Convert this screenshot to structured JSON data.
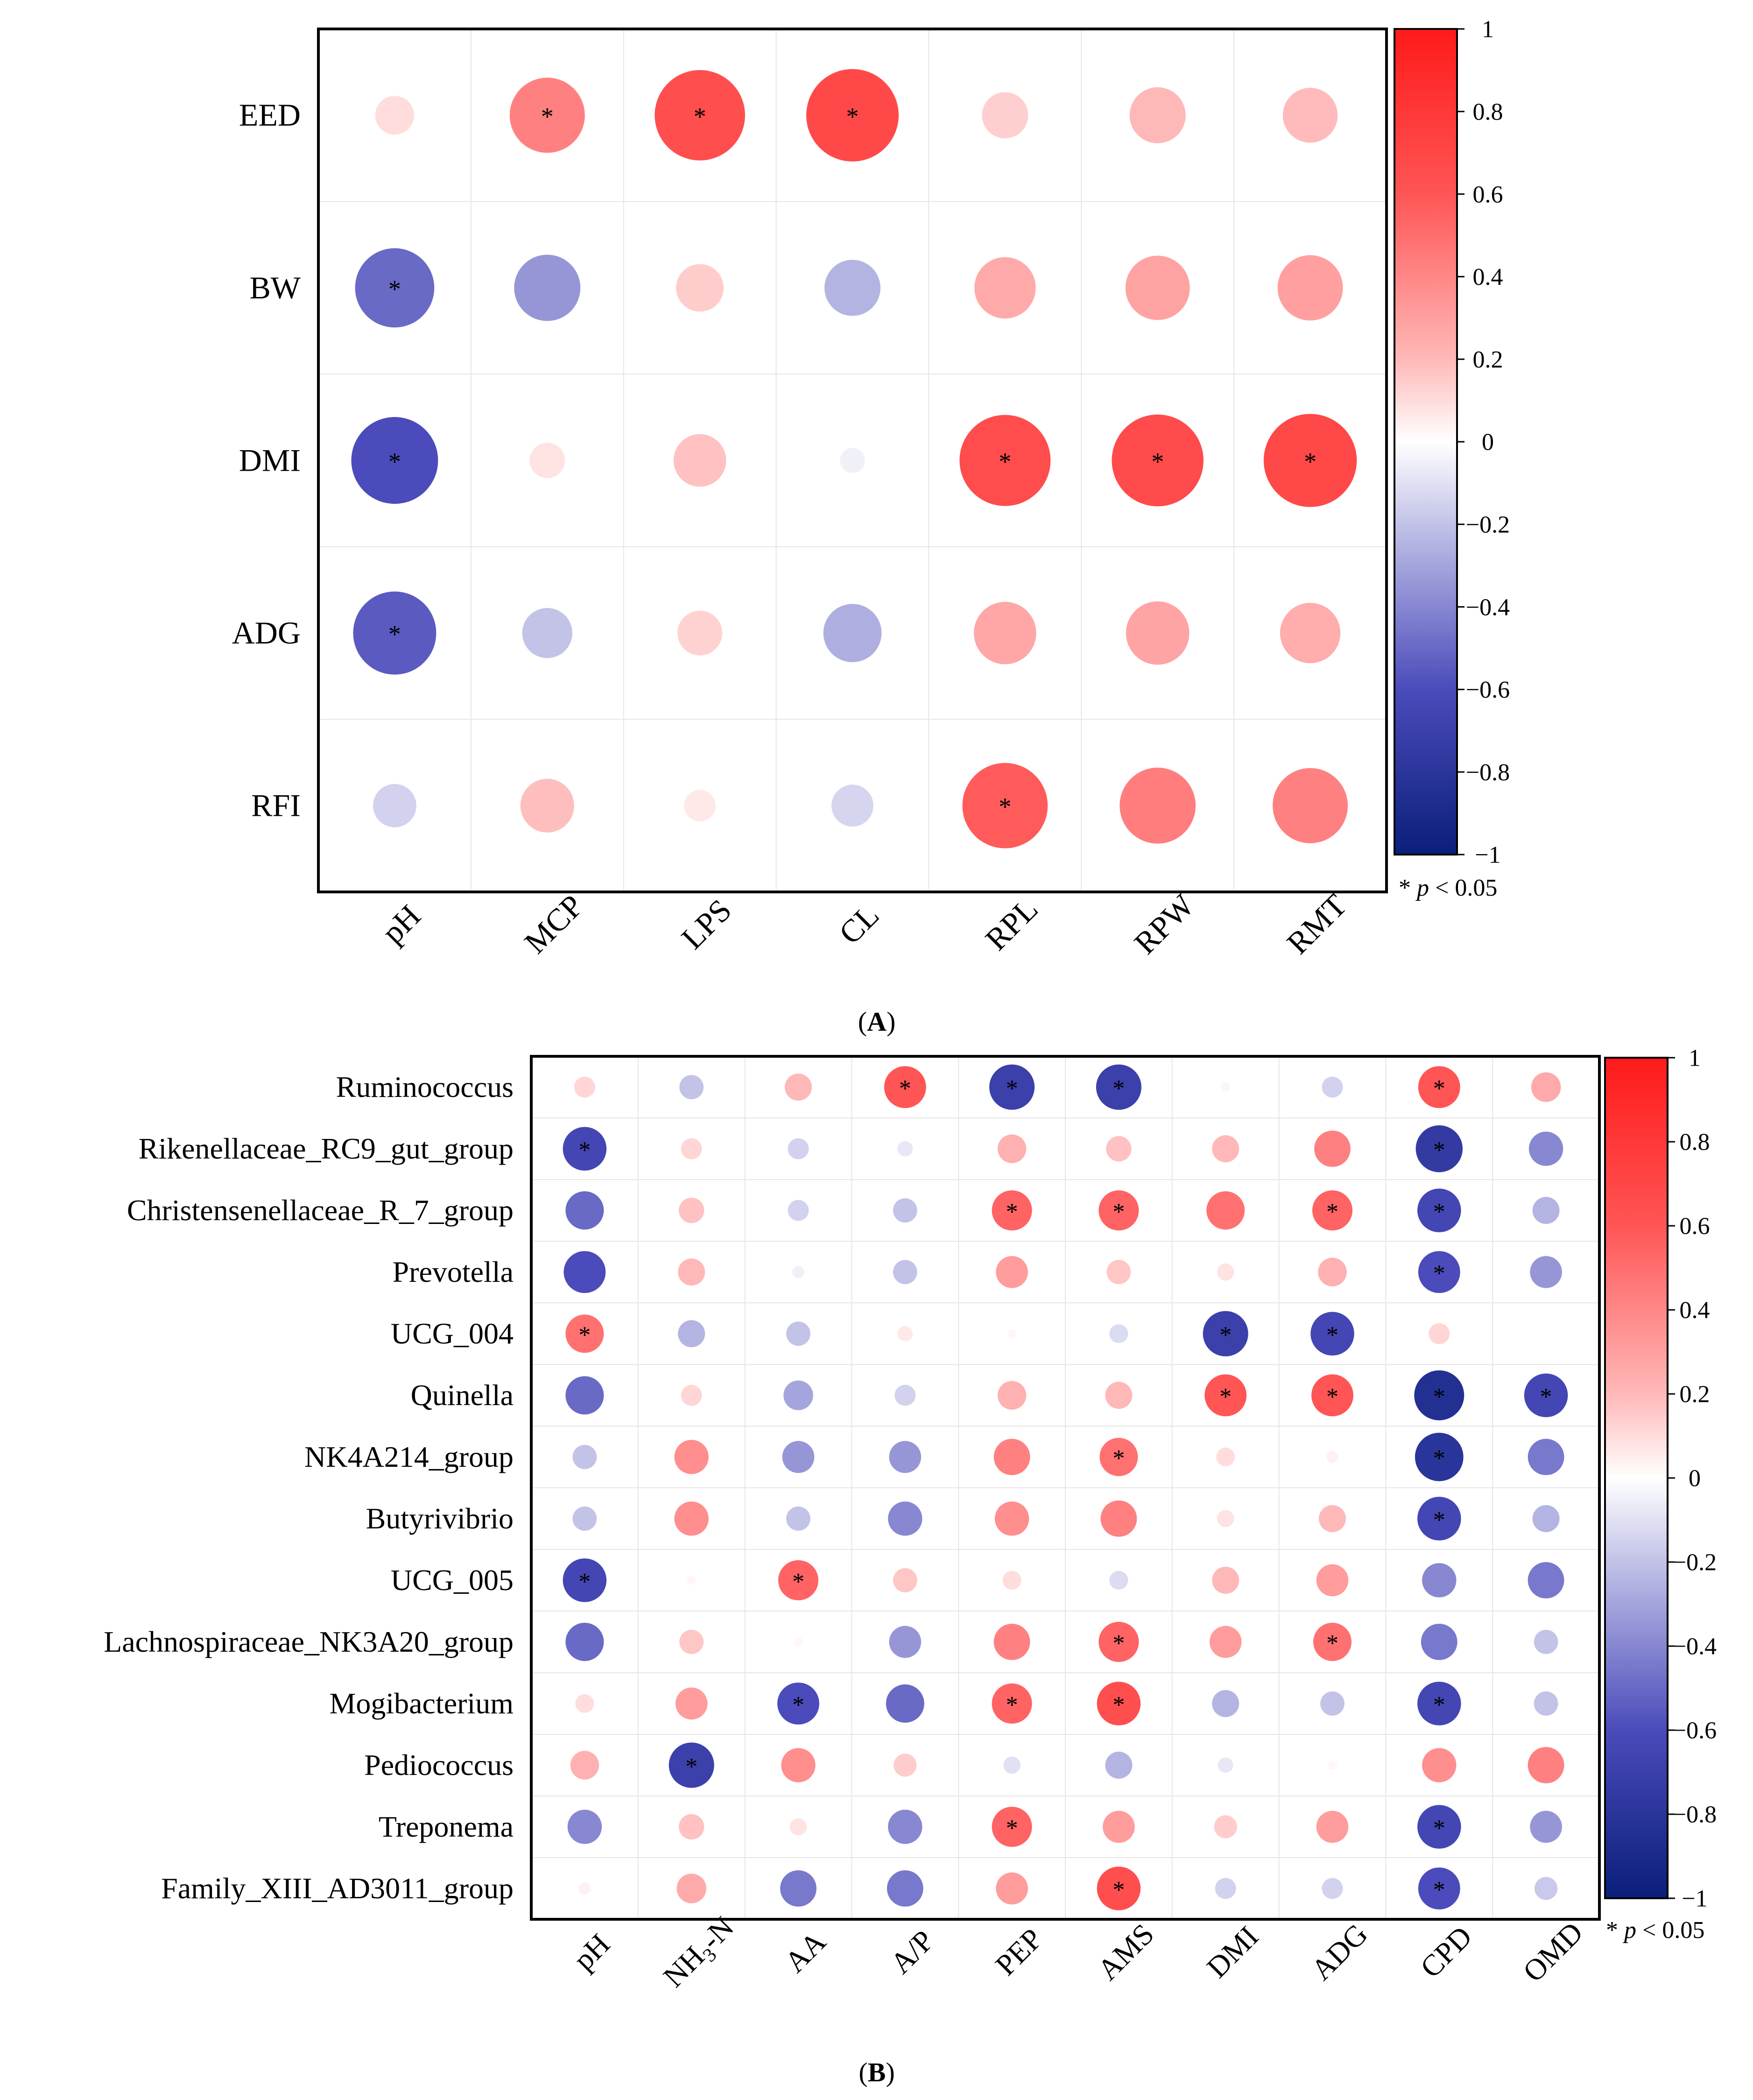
{
  "figure": {
    "panel_labels": [
      "A",
      "B"
    ],
    "significance_note": {
      "symbol": "*",
      "variable": "p",
      "relation": "< 0.05"
    },
    "colorbar_ticks": [
      "1",
      "0.8",
      "0.6",
      "0.4",
      "0.2",
      "0",
      "−0.2",
      "−0.4",
      "−0.6",
      "−0.8",
      "−1"
    ],
    "colors": {
      "positive": "#ff1a1a",
      "neutral": "#ffffff",
      "negative": "#0a1f7a",
      "grid": "#e6e6e6",
      "frame": "#000000"
    }
  },
  "chart_data": [
    {
      "type": "heatmap",
      "panel": "A",
      "title": "",
      "rows": [
        "EED",
        "BW",
        "DMI",
        "ADG",
        "RFI"
      ],
      "columns": [
        "pH",
        "MCP",
        "LPS",
        "CL",
        "RPL",
        "RPW",
        "RMT"
      ],
      "values": [
        [
          0.12,
          0.45,
          0.65,
          0.68,
          0.17,
          0.25,
          0.24
        ],
        [
          -0.5,
          -0.35,
          0.18,
          -0.25,
          0.3,
          0.33,
          0.34
        ],
        [
          -0.6,
          0.1,
          0.22,
          -0.05,
          0.66,
          0.67,
          0.69
        ],
        [
          -0.55,
          -0.2,
          0.16,
          -0.27,
          0.31,
          0.32,
          0.29
        ],
        [
          -0.15,
          0.23,
          0.08,
          -0.14,
          0.58,
          0.46,
          0.45
        ]
      ],
      "significant": [
        [
          false,
          true,
          true,
          true,
          false,
          false,
          false
        ],
        [
          true,
          false,
          false,
          false,
          false,
          false,
          false
        ],
        [
          true,
          false,
          false,
          false,
          true,
          true,
          true
        ],
        [
          true,
          false,
          false,
          false,
          false,
          false,
          false
        ],
        [
          false,
          false,
          false,
          false,
          true,
          false,
          false
        ]
      ],
      "colorbar_range": [
        -1,
        1
      ]
    },
    {
      "type": "heatmap",
      "panel": "B",
      "title": "",
      "rows": [
        "Ruminococcus",
        "Rikenellaceae_RC9_gut_group",
        "Christensenellaceae_R_7_group",
        "Prevotella",
        "UCG_004",
        "Quinella",
        "NK4A214_group",
        "Butyrivibrio",
        "UCG_005",
        "Lachnospiraceae_NK3A20_group",
        "Mogibacterium",
        "Pediococcus",
        "Treponema",
        "Family_XIII_AD3011_group"
      ],
      "columns": [
        "pH",
        "NH3-N",
        "AA",
        "A/P",
        "PEP",
        "AMS",
        "DMI",
        "ADG",
        "CPD",
        "OMD"
      ],
      "values": [
        [
          0.15,
          -0.2,
          0.25,
          0.6,
          -0.7,
          -0.7,
          -0.03,
          -0.15,
          0.6,
          0.3
        ],
        [
          -0.65,
          0.15,
          -0.15,
          -0.08,
          0.28,
          0.22,
          0.25,
          0.45,
          -0.75,
          -0.4
        ],
        [
          -0.5,
          0.22,
          -0.15,
          -0.2,
          0.55,
          0.55,
          0.5,
          0.55,
          -0.65,
          -0.25
        ],
        [
          -0.6,
          0.25,
          -0.05,
          -0.2,
          0.35,
          0.2,
          0.1,
          0.28,
          -0.6,
          -0.35
        ],
        [
          0.5,
          -0.25,
          -0.2,
          0.08,
          0.03,
          -0.12,
          -0.7,
          -0.65,
          0.15,
          0.0
        ],
        [
          -0.5,
          0.15,
          -0.3,
          -0.15,
          0.28,
          0.25,
          0.6,
          0.6,
          -0.85,
          -0.65
        ],
        [
          -0.2,
          0.4,
          -0.35,
          -0.35,
          0.45,
          0.5,
          0.12,
          0.05,
          -0.8,
          -0.45
        ],
        [
          -0.2,
          0.4,
          -0.2,
          -0.4,
          0.4,
          0.45,
          0.1,
          0.25,
          -0.65,
          -0.25
        ],
        [
          -0.65,
          0.03,
          0.55,
          0.2,
          0.12,
          -0.12,
          0.25,
          0.35,
          -0.4,
          -0.45
        ],
        [
          -0.5,
          0.2,
          0.03,
          -0.35,
          0.45,
          0.55,
          0.35,
          0.5,
          -0.45,
          -0.2
        ],
        [
          0.12,
          0.35,
          -0.6,
          -0.5,
          0.55,
          0.65,
          -0.25,
          -0.2,
          -0.65,
          -0.2
        ],
        [
          0.28,
          -0.7,
          0.4,
          0.18,
          -0.1,
          -0.25,
          -0.08,
          0.03,
          0.4,
          0.45
        ],
        [
          -0.4,
          0.22,
          0.1,
          -0.4,
          0.55,
          0.35,
          0.18,
          0.35,
          -0.65,
          -0.35
        ],
        [
          0.05,
          0.3,
          -0.45,
          -0.45,
          0.35,
          0.65,
          -0.15,
          -0.15,
          -0.6,
          -0.18
        ]
      ],
      "significant": [
        [
          false,
          false,
          false,
          true,
          true,
          true,
          false,
          false,
          true,
          false
        ],
        [
          true,
          false,
          false,
          false,
          false,
          false,
          false,
          false,
          true,
          false
        ],
        [
          false,
          false,
          false,
          false,
          true,
          true,
          false,
          true,
          true,
          false
        ],
        [
          false,
          false,
          false,
          false,
          false,
          false,
          false,
          false,
          true,
          false
        ],
        [
          true,
          false,
          false,
          false,
          false,
          false,
          true,
          true,
          false,
          false
        ],
        [
          false,
          false,
          false,
          false,
          false,
          false,
          true,
          true,
          true,
          true
        ],
        [
          false,
          false,
          false,
          false,
          false,
          true,
          false,
          false,
          true,
          false
        ],
        [
          false,
          false,
          false,
          false,
          false,
          false,
          false,
          false,
          true,
          false
        ],
        [
          true,
          false,
          true,
          false,
          false,
          false,
          false,
          false,
          false,
          false
        ],
        [
          false,
          false,
          false,
          false,
          false,
          true,
          false,
          true,
          false,
          false
        ],
        [
          false,
          false,
          true,
          false,
          true,
          true,
          false,
          false,
          true,
          false
        ],
        [
          false,
          true,
          false,
          false,
          false,
          false,
          false,
          false,
          false,
          false
        ],
        [
          false,
          false,
          false,
          false,
          true,
          false,
          false,
          false,
          true,
          false
        ],
        [
          false,
          false,
          false,
          false,
          false,
          true,
          false,
          false,
          true,
          false
        ]
      ],
      "colorbar_range": [
        -1,
        1
      ]
    }
  ]
}
